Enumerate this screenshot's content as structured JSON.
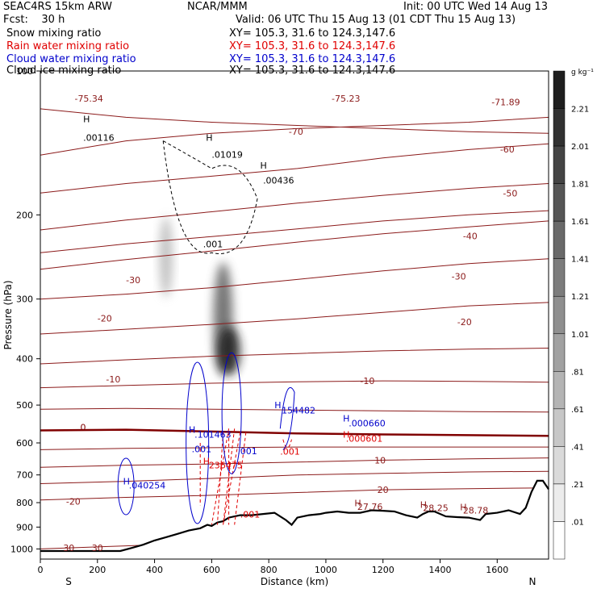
{
  "header": {
    "model": "SEAC4RS 15km ARW",
    "fcst": "Fcst:    30 h",
    "center": "NCAR/MMM",
    "init": "Init: 00 UTC Wed 14 Aug 13",
    "valid": "Valid: 06 UTC Thu 15 Aug 13 (01 CDT Thu 15 Aug 13)"
  },
  "legend": [
    {
      "name": "Snow mixing ratio",
      "xy": "XY= 105.3, 31.6 to 124.3,147.6",
      "color": "#000000"
    },
    {
      "name": "Rain water mixing ratio",
      "xy": "XY= 105.3, 31.6 to 124.3,147.6",
      "color": "#e00000"
    },
    {
      "name": "Cloud water mixing ratio",
      "xy": "XY= 105.3, 31.6 to 124.3,147.6",
      "color": "#0000cc"
    },
    {
      "name": "Cloud ice mixing ratio",
      "xy": "XY= 105.3, 31.6 to 124.3,147.6",
      "color": "#000000"
    }
  ],
  "colors": {
    "temp": "#8b1a1a",
    "zero": "#800000",
    "rain": "#e00000",
    "cloud": "#0000cc",
    "ice": "#000000",
    "terrain": "#000000"
  },
  "chart_data": {
    "type": "cross-section",
    "xlabel": "Distance (km)",
    "ylabel": "Pressure (hPa)",
    "xlim": [
      0,
      1780
    ],
    "ylim": [
      1050,
      100
    ],
    "y_log": true,
    "x_ticks": [
      0,
      200,
      400,
      600,
      800,
      1000,
      1200,
      1400,
      1600
    ],
    "y_ticks": [
      100,
      200,
      300,
      400,
      500,
      600,
      700,
      800,
      900,
      1000
    ],
    "x_end_labels": [
      "S",
      "N"
    ],
    "colorbar": {
      "unit": "g kg⁻¹",
      "labels": [
        "2.21",
        "2.01",
        "1.81",
        "1.61",
        "1.41",
        "1.21",
        "1.01",
        ".81",
        ".61",
        ".41",
        ".21",
        ".01"
      ]
    },
    "temperature_contours": [
      {
        "value": -70,
        "p": [
          150,
          140,
          135,
          132,
          130,
          128,
          125
        ]
      },
      {
        "value": -60,
        "p": [
          180,
          172,
          166,
          160,
          152,
          146,
          142
        ]
      },
      {
        "value": -50,
        "p": [
          215,
          205,
          197,
          189,
          182,
          176,
          172
        ]
      },
      {
        "value": -40,
        "p": [
          260,
          248,
          238,
          228,
          219,
          212,
          206
        ]
      },
      {
        "value": -30,
        "p": [
          300,
          293,
          284,
          273,
          262,
          253,
          247
        ]
      },
      {
        "value": -20,
        "p": [
          355,
          347,
          339,
          330,
          320,
          310,
          305
        ]
      },
      {
        "value": -10,
        "p": [
          460,
          455,
          450,
          447,
          445,
          446,
          448
        ]
      },
      {
        "value": 0,
        "p": [
          565,
          563,
          568,
          573,
          576,
          578,
          580
        ]
      },
      {
        "value": 10,
        "p": [
          675,
          668,
          664,
          658,
          652,
          648,
          645
        ]
      },
      {
        "value": 20,
        "p": [
          790,
          780,
          772,
          762,
          752,
          748,
          745
        ]
      },
      {
        "value": 30,
        "p": [
          1000,
          985,
          970,
          950,
          920,
          900,
          880
        ]
      }
    ],
    "temperature_labels": [
      {
        "text": "-75.34",
        "x": 120,
        "p": 116
      },
      {
        "text": "-75.23",
        "x": 1020,
        "p": 116
      },
      {
        "text": "-71.89",
        "x": 1580,
        "p": 118
      },
      {
        "text": "-70",
        "x": 870,
        "p": 136
      },
      {
        "text": "-60",
        "x": 1610,
        "p": 148
      },
      {
        "text": "-50",
        "x": 1620,
        "p": 183
      },
      {
        "text": "-40",
        "x": 1480,
        "p": 225
      },
      {
        "text": "-30",
        "x": 300,
        "p": 278
      },
      {
        "text": "-30",
        "x": 1440,
        "p": 273
      },
      {
        "text": "-20",
        "x": 200,
        "p": 334
      },
      {
        "text": "-20",
        "x": 1460,
        "p": 340
      },
      {
        "text": "-10",
        "x": 230,
        "p": 448
      },
      {
        "text": "-10",
        "x": 1120,
        "p": 452
      },
      {
        "text": "0",
        "x": 140,
        "p": 565
      },
      {
        "text": "10",
        "x": 1170,
        "p": 663
      },
      {
        "text": "20",
        "x": 1180,
        "p": 763
      },
      {
        "text": "-20",
        "x": 90,
        "p": 808
      },
      {
        "text": "30",
        "x": 80,
        "p": 1010
      },
      {
        "text": "30",
        "x": 180,
        "p": 1010
      }
    ],
    "terrain": {
      "x": [
        0,
        280,
        320,
        360,
        400,
        440,
        480,
        520,
        560,
        585,
        600,
        620,
        640,
        660,
        700,
        740,
        780,
        820,
        860,
        880,
        900,
        940,
        980,
        1000,
        1040,
        1080,
        1120,
        1160,
        1200,
        1240,
        1280,
        1320,
        1340,
        1360,
        1380,
        1420,
        1460,
        1500,
        1540,
        1560,
        1600,
        1640,
        1680,
        1700,
        1720,
        1740,
        1760,
        1780
      ],
      "p": [
        1010,
        1010,
        995,
        980,
        960,
        945,
        930,
        915,
        905,
        890,
        895,
        880,
        875,
        860,
        850,
        850,
        845,
        840,
        870,
        890,
        860,
        850,
        845,
        840,
        835,
        840,
        840,
        830,
        832,
        835,
        850,
        860,
        845,
        835,
        835,
        855,
        858,
        860,
        870,
        845,
        840,
        830,
        845,
        820,
        760,
        720,
        720,
        750
      ]
    },
    "rain_mixing_ratio": {
      "labels": [
        {
          "text": "H",
          "x": 570,
          "p": 665
        },
        {
          "text": "236475",
          "x": 590,
          "p": 678
        },
        {
          "text": ".001",
          "x": 700,
          "p": 860
        },
        {
          "text": ".001",
          "x": 840,
          "p": 635
        },
        {
          "text": "H",
          "x": 1060,
          "p": 585
        },
        {
          "text": ".000601",
          "x": 1070,
          "p": 597
        }
      ]
    },
    "cloud_water_mixing_ratio": {
      "labels": [
        {
          "text": "H",
          "x": 290,
          "p": 733
        },
        {
          "text": ".040254",
          "x": 310,
          "p": 748
        },
        {
          "text": "H",
          "x": 520,
          "p": 572
        },
        {
          "text": ".101463",
          "x": 540,
          "p": 585
        },
        {
          "text": ".001",
          "x": 530,
          "p": 627
        },
        {
          "text": ".001",
          "x": 690,
          "p": 633
        },
        {
          "text": "H",
          "x": 820,
          "p": 508
        },
        {
          "text": "154482",
          "x": 845,
          "p": 521
        },
        {
          "text": "H",
          "x": 1060,
          "p": 541
        },
        {
          "text": ".000660",
          "x": 1080,
          "p": 554
        }
      ]
    },
    "ice_mixing_ratio": {
      "labels": [
        {
          "text": "H",
          "x": 150,
          "p": 128
        },
        {
          "text": ".00116",
          "x": 150,
          "p": 140
        },
        {
          "text": "H",
          "x": 580,
          "p": 140
        },
        {
          "text": ".01019",
          "x": 600,
          "p": 152
        },
        {
          "text": "H",
          "x": 770,
          "p": 160
        },
        {
          "text": ".00436",
          "x": 780,
          "p": 172
        },
        {
          "text": ".001",
          "x": 570,
          "p": 234
        }
      ]
    },
    "max_labels": [
      {
        "text": "H",
        "x": 1100,
        "p": 814
      },
      {
        "text": "27.76",
        "x": 1110,
        "p": 828
      },
      {
        "text": "H",
        "x": 1330,
        "p": 820
      },
      {
        "text": "28.25",
        "x": 1340,
        "p": 834
      },
      {
        "text": "H",
        "x": 1470,
        "p": 830
      },
      {
        "text": "28.78",
        "x": 1480,
        "p": 843
      }
    ]
  }
}
